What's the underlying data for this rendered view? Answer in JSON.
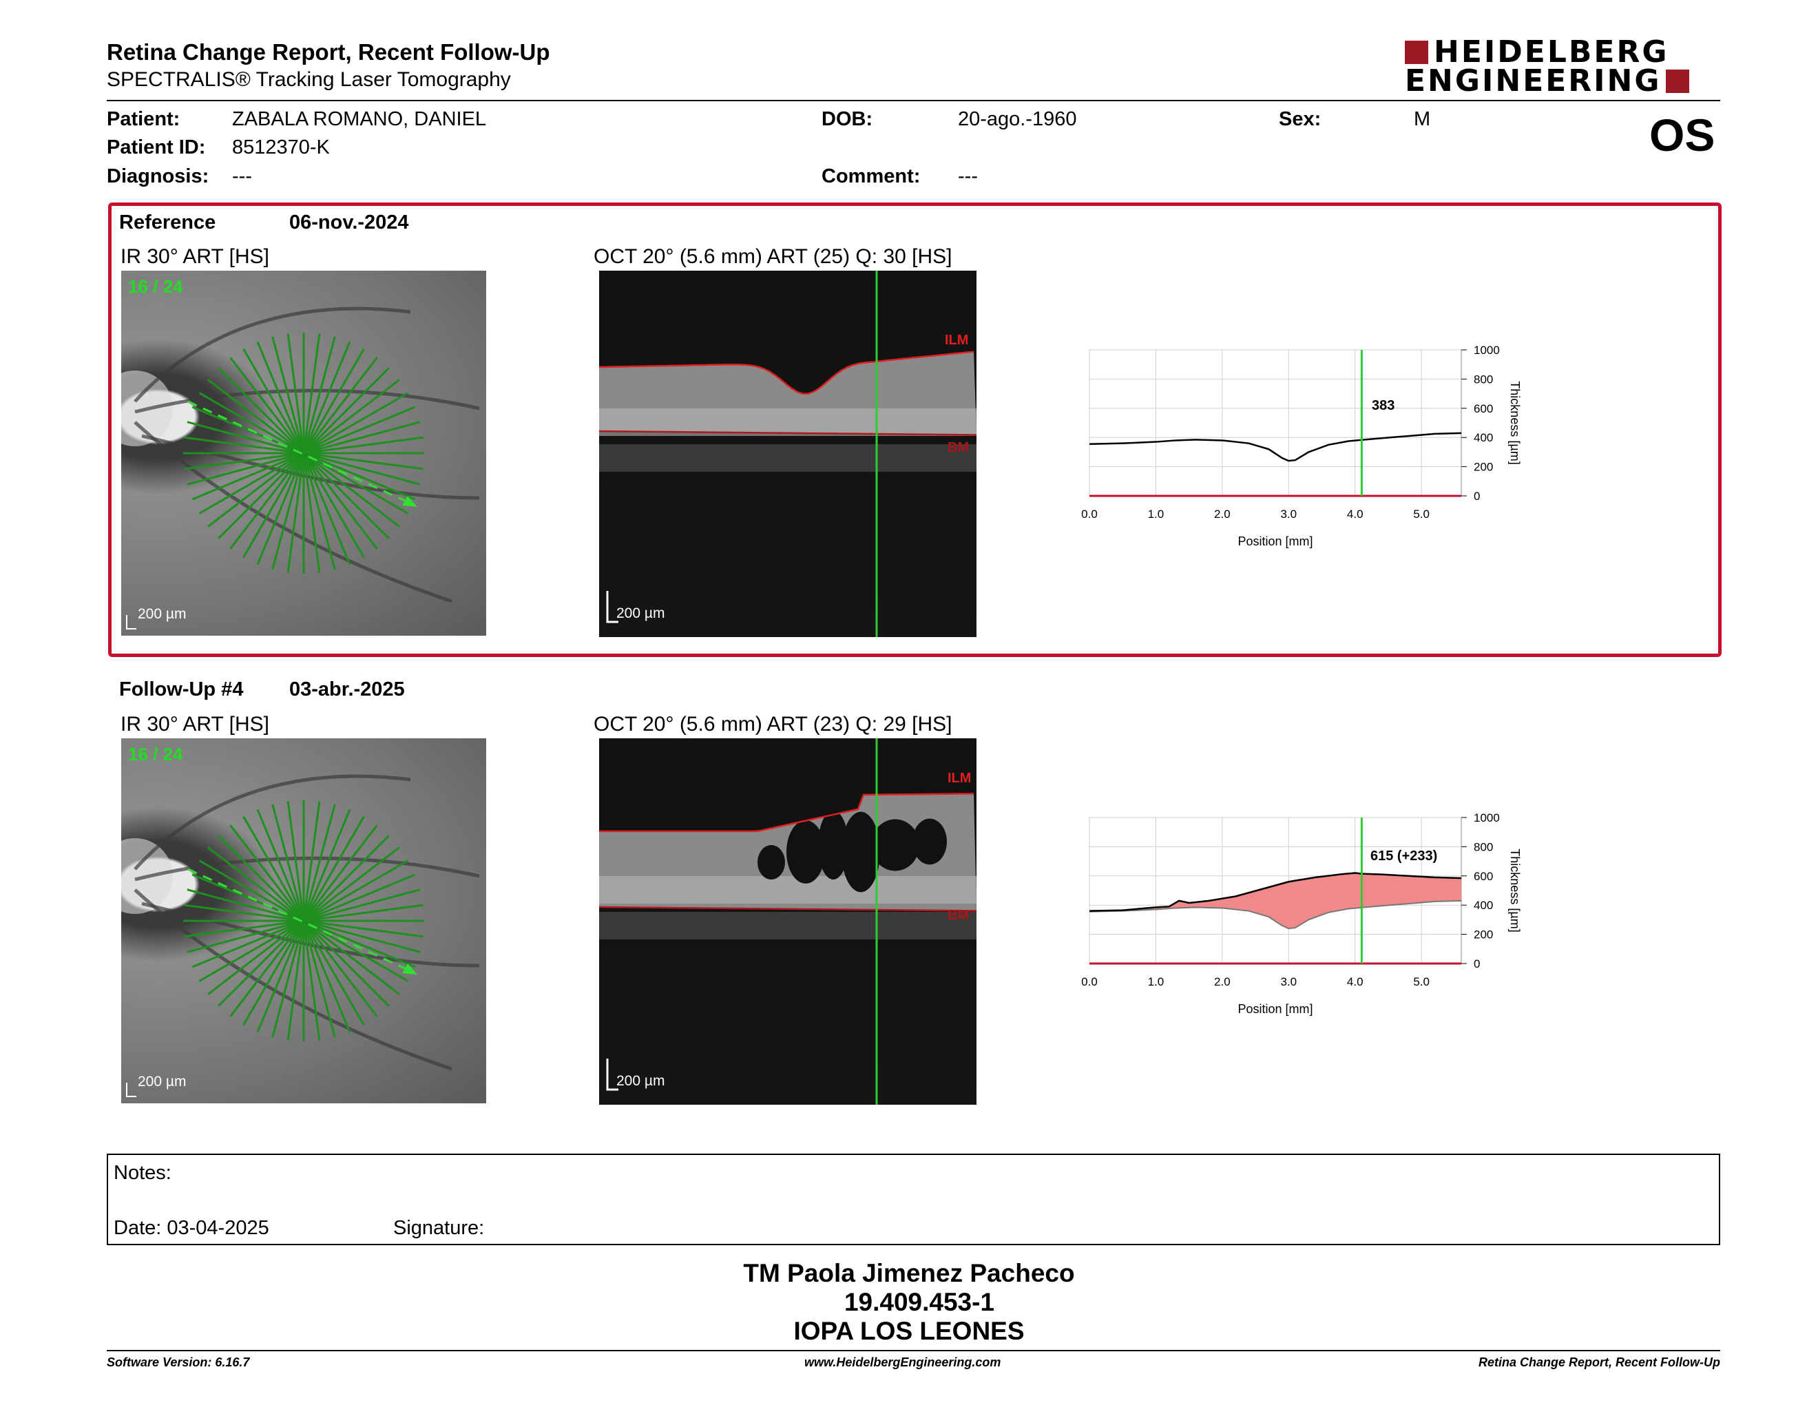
{
  "header": {
    "title": "Retina Change Report, Recent Follow-Up",
    "subtitle": "SPECTRALIS® Tracking Laser Tomography",
    "logo_line1": "HEIDELBERG",
    "logo_line2": "ENGINEERING",
    "eye": "OS",
    "brand_color": "#9b1b24"
  },
  "patient": {
    "patient_label": "Patient:",
    "patient_value": "ZABALA ROMANO, DANIEL",
    "id_label": "Patient ID:",
    "id_value": "8512370-K",
    "diagnosis_label": "Diagnosis:",
    "diagnosis_value": "---",
    "dob_label": "DOB:",
    "dob_value": "20-ago.-1960",
    "comment_label": "Comment:",
    "comment_value": "---",
    "sex_label": "Sex:",
    "sex_value": "M"
  },
  "reference": {
    "label": "Reference",
    "date": "06-nov.-2024",
    "ir_caption": "IR 30° ART [HS]",
    "ir_count": "16 / 24",
    "ir_scale": "200 µm",
    "oct_caption": "OCT 20° (5.6 mm) ART (25) Q: 30 [HS]",
    "oct_scale": "200 µm",
    "ilm": "ILM",
    "bm": "BM",
    "readout": "383"
  },
  "followup": {
    "label": "Follow-Up #4",
    "date": "03-abr.-2025",
    "ir_caption": "IR 30° ART [HS]",
    "ir_count": "16 / 24",
    "ir_scale": "200 µm",
    "oct_caption": "OCT 20° (5.6 mm) ART (23) Q: 29 [HS]",
    "oct_scale": "200 µm",
    "ilm": "ILM",
    "bm": "BM",
    "readout": "615 (+233)"
  },
  "chart_data": [
    {
      "type": "line",
      "title": "",
      "xlabel": "Position [mm]",
      "ylabel": "Thickness [µm]",
      "xlim": [
        0,
        5.6
      ],
      "ylim": [
        0,
        1000
      ],
      "xticks": [
        "0.0",
        "1.0",
        "2.0",
        "3.0",
        "4.0",
        "5.0"
      ],
      "yticks": [
        "0",
        "200",
        "400",
        "600",
        "800",
        "1000"
      ],
      "cursor_x": 4.1,
      "series": [
        {
          "x": [
            0.0,
            0.5,
            1.0,
            1.3,
            1.6,
            2.0,
            2.4,
            2.7,
            2.9,
            3.0,
            3.1,
            3.3,
            3.6,
            3.9,
            4.1,
            4.4,
            4.8,
            5.2,
            5.6
          ],
          "values": [
            355,
            360,
            370,
            380,
            385,
            380,
            360,
            320,
            260,
            240,
            245,
            300,
            350,
            375,
            383,
            395,
            410,
            425,
            430
          ]
        }
      ]
    },
    {
      "type": "area",
      "title": "",
      "xlabel": "Position [mm]",
      "ylabel": "Thickness [µm]",
      "xlim": [
        0,
        5.6
      ],
      "ylim": [
        0,
        1000
      ],
      "xticks": [
        "0.0",
        "1.0",
        "2.0",
        "3.0",
        "4.0",
        "5.0"
      ],
      "yticks": [
        "0",
        "200",
        "400",
        "600",
        "800",
        "1000"
      ],
      "cursor_x": 4.1,
      "series": [
        {
          "x": [
            0.0,
            0.5,
            1.0,
            1.2,
            1.35,
            1.5,
            1.8,
            2.2,
            2.6,
            3.0,
            3.4,
            3.8,
            4.0,
            4.1,
            4.4,
            4.8,
            5.2,
            5.6
          ],
          "values": [
            360,
            365,
            385,
            390,
            430,
            415,
            430,
            460,
            510,
            560,
            590,
            612,
            620,
            615,
            610,
            600,
            590,
            585
          ]
        },
        {
          "x": [
            0.0,
            0.5,
            1.0,
            1.3,
            1.6,
            2.0,
            2.4,
            2.7,
            2.9,
            3.0,
            3.1,
            3.3,
            3.6,
            3.9,
            4.1,
            4.4,
            4.8,
            5.2,
            5.6
          ],
          "values": [
            355,
            360,
            370,
            380,
            385,
            380,
            360,
            320,
            260,
            240,
            245,
            300,
            350,
            375,
            383,
            395,
            410,
            425,
            430
          ]
        }
      ],
      "fill_color": "#f08a8a"
    }
  ],
  "notes": {
    "notes_label": "Notes:",
    "date_label": "Date: 03-04-2025",
    "signature_label": "Signature:"
  },
  "signature_block": {
    "name": "TM Paola Jimenez Pacheco",
    "rut": "19.409.453-1",
    "institution": "IOPA LOS LEONES"
  },
  "footer": {
    "software": "Software Version: 6.16.7",
    "website": "www.HeidelbergEngineering.com",
    "report": "Retina Change Report, Recent Follow-Up"
  }
}
